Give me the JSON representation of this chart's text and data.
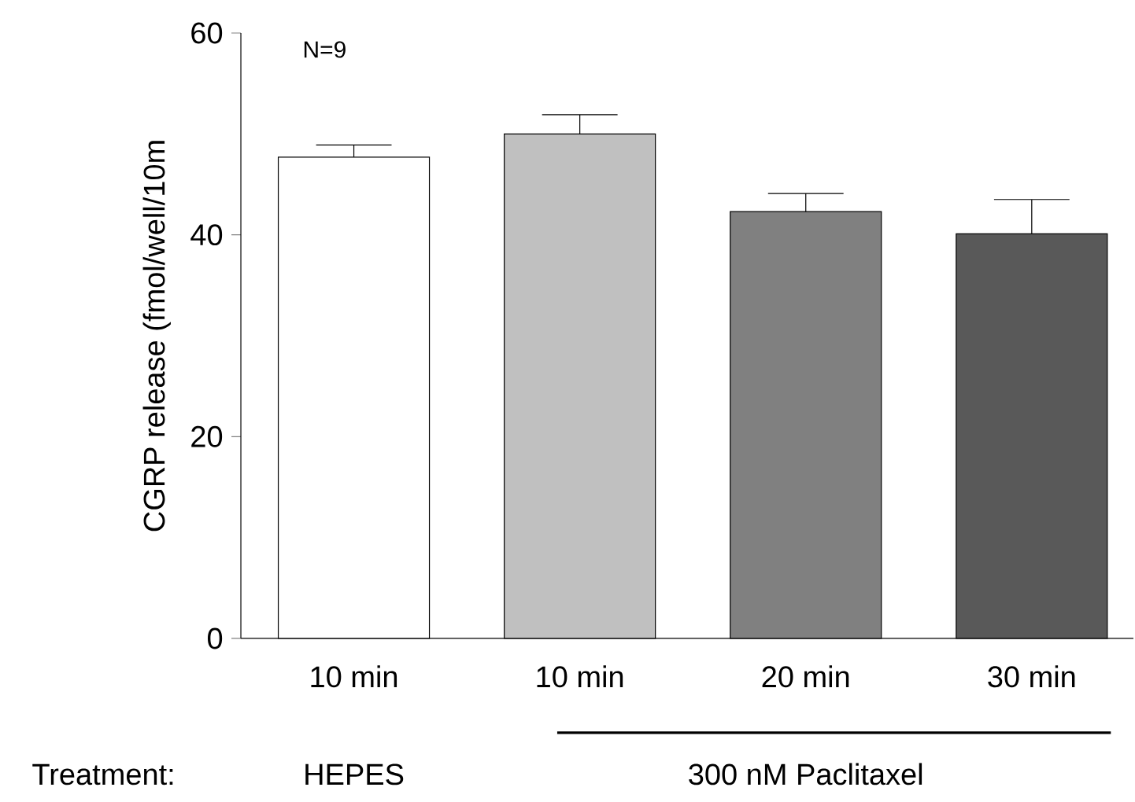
{
  "chart_data": {
    "type": "bar",
    "ylabel": "CGRP release (fmol/well/10m",
    "categories": [
      "10 min",
      "10 min",
      "20 min",
      "30 min"
    ],
    "values": [
      47.7,
      50.0,
      42.3,
      40.1
    ],
    "colors": [
      "#ffffff",
      "#c0c0c0",
      "#808080",
      "#595959"
    ],
    "errors": [
      [
        47.7,
        48.9
      ],
      [
        50.0,
        51.9
      ],
      [
        42.3,
        44.1
      ],
      [
        40.1,
        43.5
      ]
    ],
    "ylim": [
      0,
      60
    ],
    "yticks": [
      0,
      20,
      40,
      60
    ],
    "grid": false,
    "annotations": [
      "N=9",
      "Treatment:",
      "HEPES",
      "300 nM Paclitaxel"
    ]
  }
}
